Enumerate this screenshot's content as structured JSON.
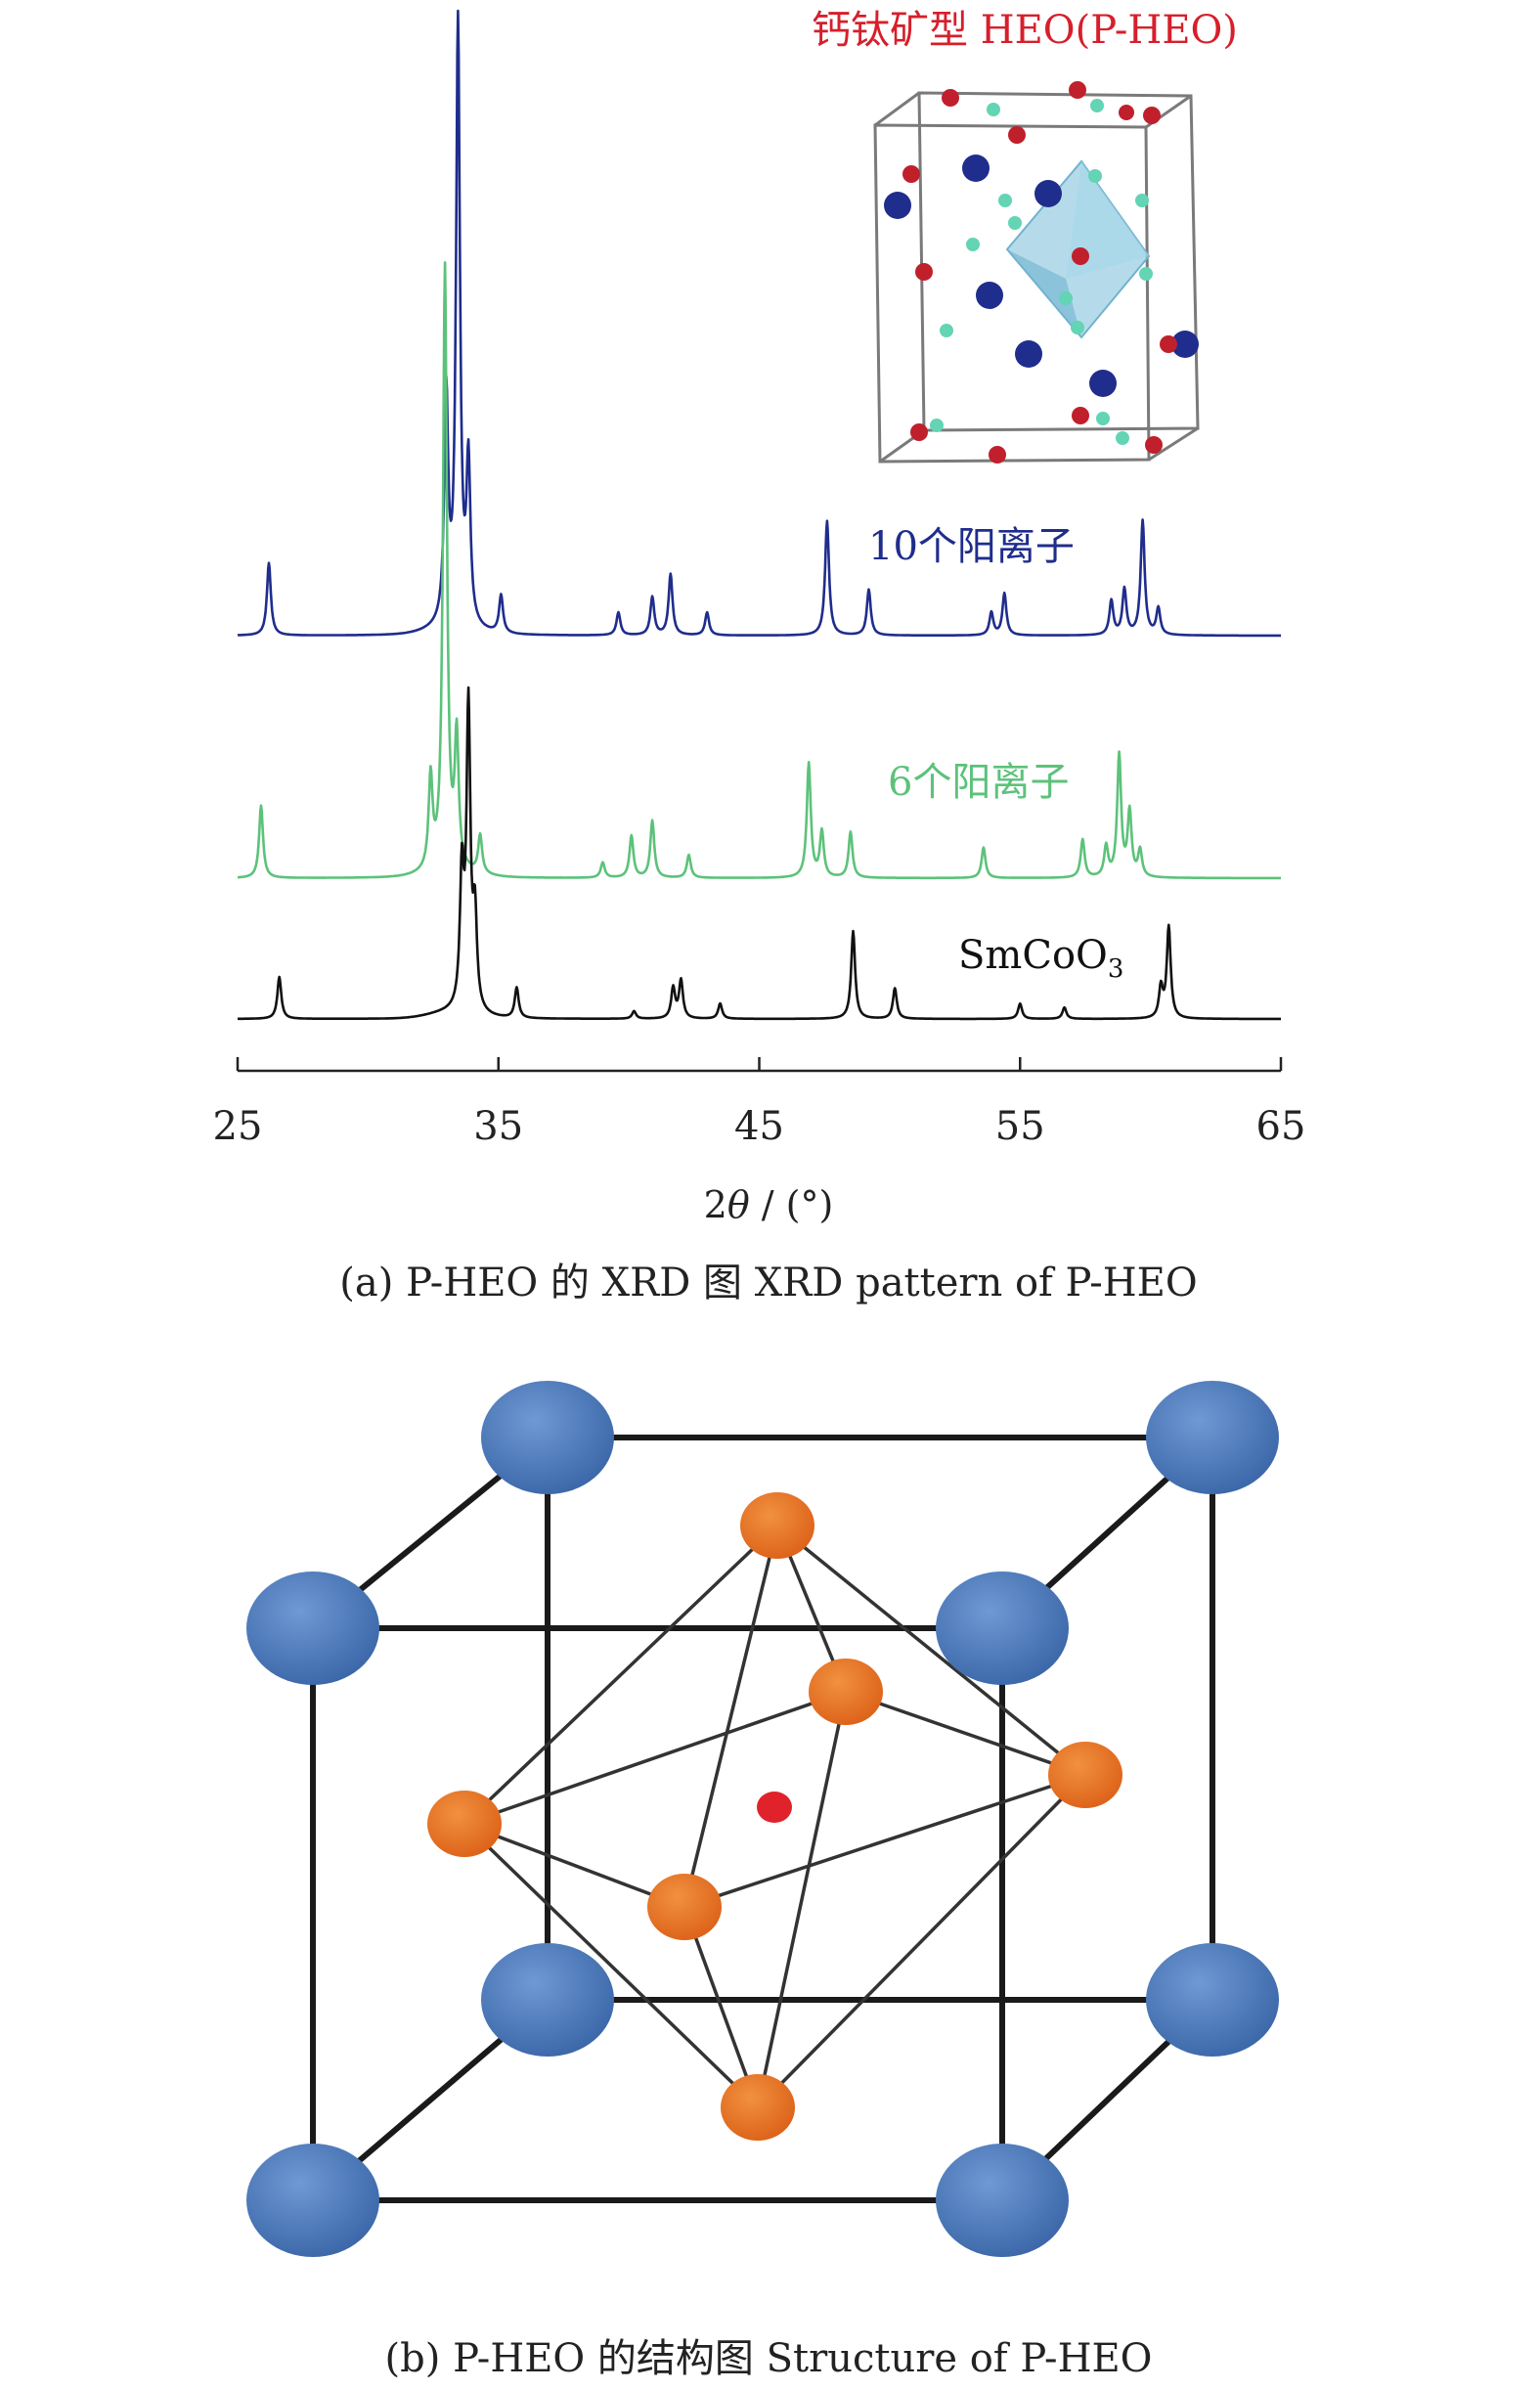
{
  "figure": {
    "panel_a_caption": "(a) P-HEO 的 XRD 图 XRD pattern of P-HEO",
    "panel_b_caption": "(b) P-HEO 的结构图 Structure of P-HEO",
    "inset_title": "钙钛矿型 HEO(P-HEO)",
    "colors": {
      "inset_title": "#d61f2b",
      "blue_series": "#1f2d8c",
      "green_series": "#5cc27a",
      "black_series": "#111111",
      "cube_atom": "#3f6eb0",
      "octa_atom": "#e2691f",
      "center_atom": "#e0232b"
    }
  },
  "chart_data": {
    "type": "line",
    "xlabel_prefix": "2",
    "xlabel_theta": "θ",
    "xlabel_suffix": " / (°)",
    "xlim": [
      25,
      65
    ],
    "xticks": [
      25,
      35,
      45,
      55,
      65
    ],
    "y_axis_shown": false,
    "grid": false,
    "series": [
      {
        "name": "10个阳离子",
        "label_main": "10个阳离子",
        "color": "#1f2d8c",
        "peaks": [
          {
            "x": 26.2,
            "h": 0.19
          },
          {
            "x": 33.0,
            "h": 0.6
          },
          {
            "x": 33.45,
            "h": 1.58
          },
          {
            "x": 33.85,
            "h": 0.42
          },
          {
            "x": 35.1,
            "h": 0.1
          },
          {
            "x": 39.6,
            "h": 0.06
          },
          {
            "x": 40.9,
            "h": 0.1
          },
          {
            "x": 41.6,
            "h": 0.16
          },
          {
            "x": 43.0,
            "h": 0.06
          },
          {
            "x": 47.6,
            "h": 0.3
          },
          {
            "x": 49.2,
            "h": 0.12
          },
          {
            "x": 53.9,
            "h": 0.06
          },
          {
            "x": 54.4,
            "h": 0.11
          },
          {
            "x": 58.5,
            "h": 0.09
          },
          {
            "x": 59.0,
            "h": 0.12
          },
          {
            "x": 59.7,
            "h": 0.3
          },
          {
            "x": 60.3,
            "h": 0.07
          }
        ]
      },
      {
        "name": "6个阳离子",
        "label_main": "6个阳离子",
        "color": "#5cc27a",
        "peaks": [
          {
            "x": 25.9,
            "h": 0.19
          },
          {
            "x": 32.4,
            "h": 0.24
          },
          {
            "x": 32.95,
            "h": 1.58
          },
          {
            "x": 33.4,
            "h": 0.34
          },
          {
            "x": 34.3,
            "h": 0.1
          },
          {
            "x": 39.0,
            "h": 0.04
          },
          {
            "x": 40.1,
            "h": 0.11
          },
          {
            "x": 40.9,
            "h": 0.15
          },
          {
            "x": 42.3,
            "h": 0.06
          },
          {
            "x": 46.9,
            "h": 0.3
          },
          {
            "x": 47.4,
            "h": 0.12
          },
          {
            "x": 48.5,
            "h": 0.12
          },
          {
            "x": 53.6,
            "h": 0.08
          },
          {
            "x": 57.4,
            "h": 0.1
          },
          {
            "x": 58.3,
            "h": 0.08
          },
          {
            "x": 58.8,
            "h": 0.32
          },
          {
            "x": 59.2,
            "h": 0.17
          },
          {
            "x": 59.6,
            "h": 0.07
          }
        ]
      },
      {
        "name": "SmCoO3",
        "label_main": "SmCoO",
        "label_sub": "3",
        "color": "#111111",
        "peaks": [
          {
            "x": 26.6,
            "h": 0.11
          },
          {
            "x": 33.6,
            "h": 0.35
          },
          {
            "x": 33.85,
            "h": 0.79
          },
          {
            "x": 34.1,
            "h": 0.24
          },
          {
            "x": 35.7,
            "h": 0.08
          },
          {
            "x": 40.2,
            "h": 0.02
          },
          {
            "x": 41.7,
            "h": 0.08
          },
          {
            "x": 42.0,
            "h": 0.1
          },
          {
            "x": 43.5,
            "h": 0.04
          },
          {
            "x": 48.6,
            "h": 0.23
          },
          {
            "x": 50.2,
            "h": 0.08
          },
          {
            "x": 55.0,
            "h": 0.04
          },
          {
            "x": 56.7,
            "h": 0.03
          },
          {
            "x": 60.4,
            "h": 0.08
          },
          {
            "x": 60.7,
            "h": 0.24
          }
        ]
      }
    ]
  }
}
